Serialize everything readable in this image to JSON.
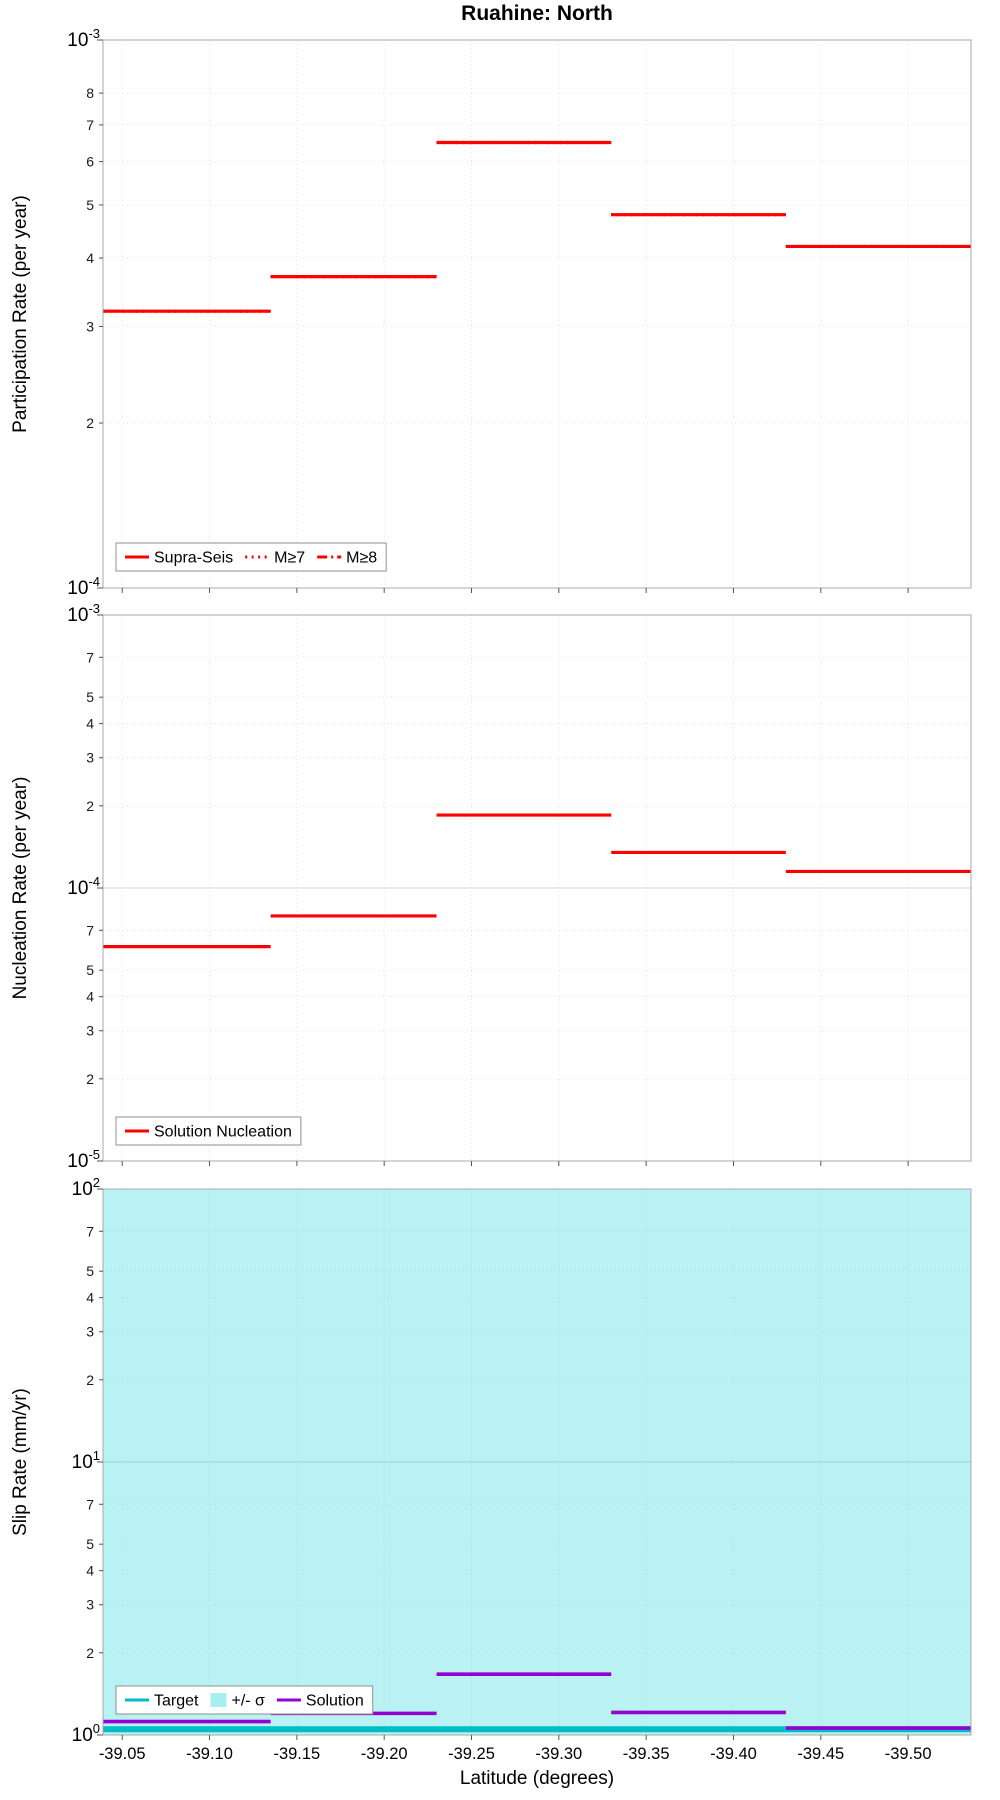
{
  "title": "Ruahine: North",
  "xlabel": "Latitude (degrees)",
  "chart_data": [
    {
      "name": "participation",
      "type": "step",
      "ylabel": "Participation Rate (per year)",
      "y_log_range": [
        -4,
        -3
      ],
      "minor_tick_labels": [
        2,
        3,
        4,
        5,
        6,
        7,
        8
      ],
      "x_range": [
        -39.039,
        -39.536
      ],
      "x_ticks": [
        "-39.05",
        "-39.10",
        "-39.15",
        "-39.20",
        "-39.25",
        "-39.30",
        "-39.35",
        "-39.40",
        "-39.45",
        "-39.50"
      ],
      "x_tick_labels_visible": false,
      "grid": true,
      "segment_bounds": [
        -39.039,
        -39.135,
        -39.23,
        -39.33,
        -39.43,
        -39.536
      ],
      "series": [
        {
          "name": "Supra-Seis",
          "type": "step",
          "style": "solid",
          "color": "#ff0000",
          "width": 3.2,
          "values": [
            0.00032,
            0.00037,
            0.00065,
            0.00048,
            0.00042
          ]
        },
        {
          "name": "M≥7",
          "type": "step",
          "style": "dotted",
          "color": "#ff0000",
          "width": 3.2,
          "values": [
            0.00032,
            0.00037,
            0.00065,
            0.00048,
            0.00042
          ]
        },
        {
          "name": "M≥8",
          "type": "step",
          "style": "dashdot",
          "color": "#ff0000",
          "width": 2.4,
          "values": [
            0.00032,
            0.00037,
            0.00065,
            0.00048,
            0.00042
          ]
        }
      ],
      "legend": [
        {
          "label": "Supra-Seis",
          "swatch": "line",
          "style": "solid",
          "color": "#ff0000"
        },
        {
          "label": "M≥7",
          "swatch": "line",
          "style": "dotted",
          "color": "#ff0000"
        },
        {
          "label": "M≥8",
          "swatch": "line",
          "style": "dashdot",
          "color": "#ff0000"
        }
      ]
    },
    {
      "name": "nucleation",
      "type": "step",
      "ylabel": "Nucleation Rate (per year)",
      "y_log_range": [
        -5,
        -3
      ],
      "minor_tick_labels": [
        2,
        3,
        4,
        5,
        7
      ],
      "x_range": [
        -39.039,
        -39.536
      ],
      "x_ticks": [
        "-39.05",
        "-39.10",
        "-39.15",
        "-39.20",
        "-39.25",
        "-39.30",
        "-39.35",
        "-39.40",
        "-39.45",
        "-39.50"
      ],
      "x_tick_labels_visible": false,
      "grid": true,
      "segment_bounds": [
        -39.039,
        -39.135,
        -39.23,
        -39.33,
        -39.43,
        -39.536
      ],
      "series": [
        {
          "name": "Solution Nucleation",
          "type": "step",
          "style": "solid",
          "color": "#ff0000",
          "width": 3.2,
          "values": [
            6.1e-05,
            7.9e-05,
            0.000185,
            0.000135,
            0.000115
          ]
        }
      ],
      "legend": [
        {
          "label": "Solution Nucleation",
          "swatch": "line",
          "style": "solid",
          "color": "#ff0000"
        }
      ]
    },
    {
      "name": "slip-rate",
      "type": "step",
      "ylabel": "Slip Rate (mm/yr)",
      "y_log_range": [
        0,
        2
      ],
      "minor_tick_labels": [
        2,
        3,
        4,
        5,
        7
      ],
      "x_range": [
        -39.039,
        -39.536
      ],
      "x_ticks": [
        "-39.05",
        "-39.10",
        "-39.15",
        "-39.20",
        "-39.25",
        "-39.30",
        "-39.35",
        "-39.40",
        "-39.45",
        "-39.50"
      ],
      "x_tick_labels_visible": true,
      "grid": true,
      "segment_bounds": [
        -39.039,
        -39.135,
        -39.23,
        -39.33,
        -39.43,
        -39.536
      ],
      "series": [
        {
          "name": "+/- σ",
          "type": "band",
          "color": "#00ced1",
          "opacity": 0.27,
          "y_range": [
            1,
            100
          ]
        },
        {
          "name": "Target",
          "type": "hline",
          "color": "#00bcc4",
          "width": 6,
          "y": 1.05
        },
        {
          "name": "Solution",
          "type": "step",
          "style": "solid",
          "color": "#9400d3",
          "width": 3.6,
          "values": [
            1.12,
            1.2,
            1.67,
            1.21,
            1.06
          ]
        }
      ],
      "legend": [
        {
          "label": "Target",
          "swatch": "line",
          "style": "solid",
          "color": "#00bcc4"
        },
        {
          "label": "+/- σ",
          "swatch": "patch",
          "color": "#00ced1",
          "opacity": 0.35
        },
        {
          "label": "Solution",
          "swatch": "line",
          "style": "solid",
          "color": "#9400d3"
        }
      ]
    }
  ]
}
